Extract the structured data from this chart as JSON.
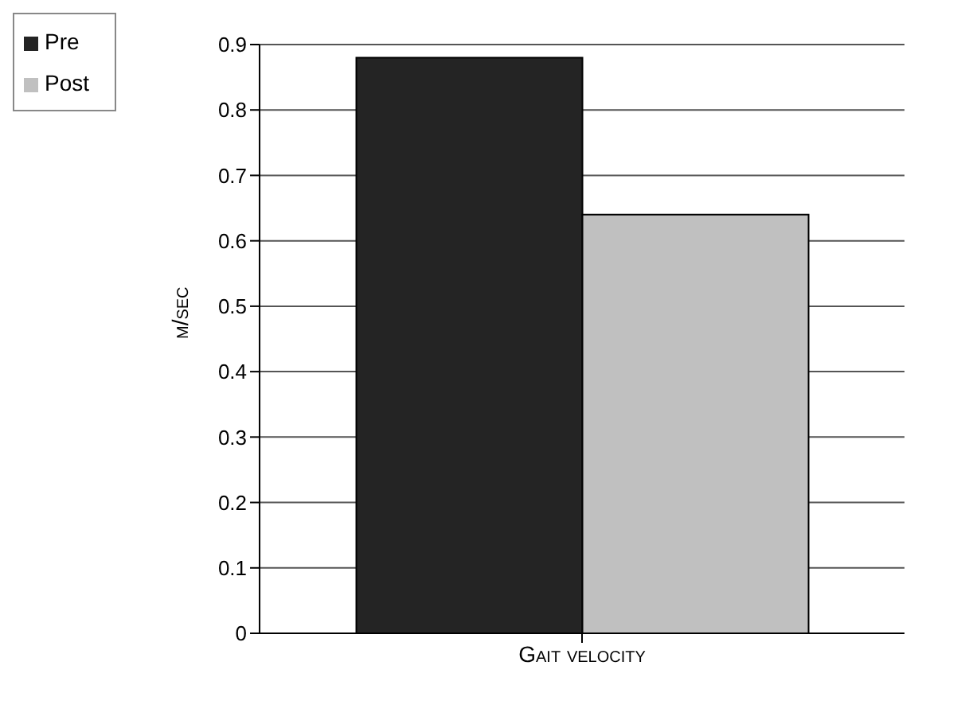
{
  "chart_data": {
    "type": "bar",
    "categories": [
      "Gait velocity"
    ],
    "ylabel": "m/sec",
    "series": [
      {
        "name": "Pre",
        "color": "#242424",
        "values": [
          0.88
        ]
      },
      {
        "name": "Post",
        "color": "#c0c0c0",
        "values": [
          0.64
        ]
      }
    ],
    "ylim": [
      0,
      0.9
    ],
    "yticks": [
      0,
      0.1,
      0.2,
      0.3,
      0.4,
      0.5,
      0.6,
      0.7,
      0.8,
      0.9
    ],
    "grid": "y",
    "legend": "top left"
  }
}
